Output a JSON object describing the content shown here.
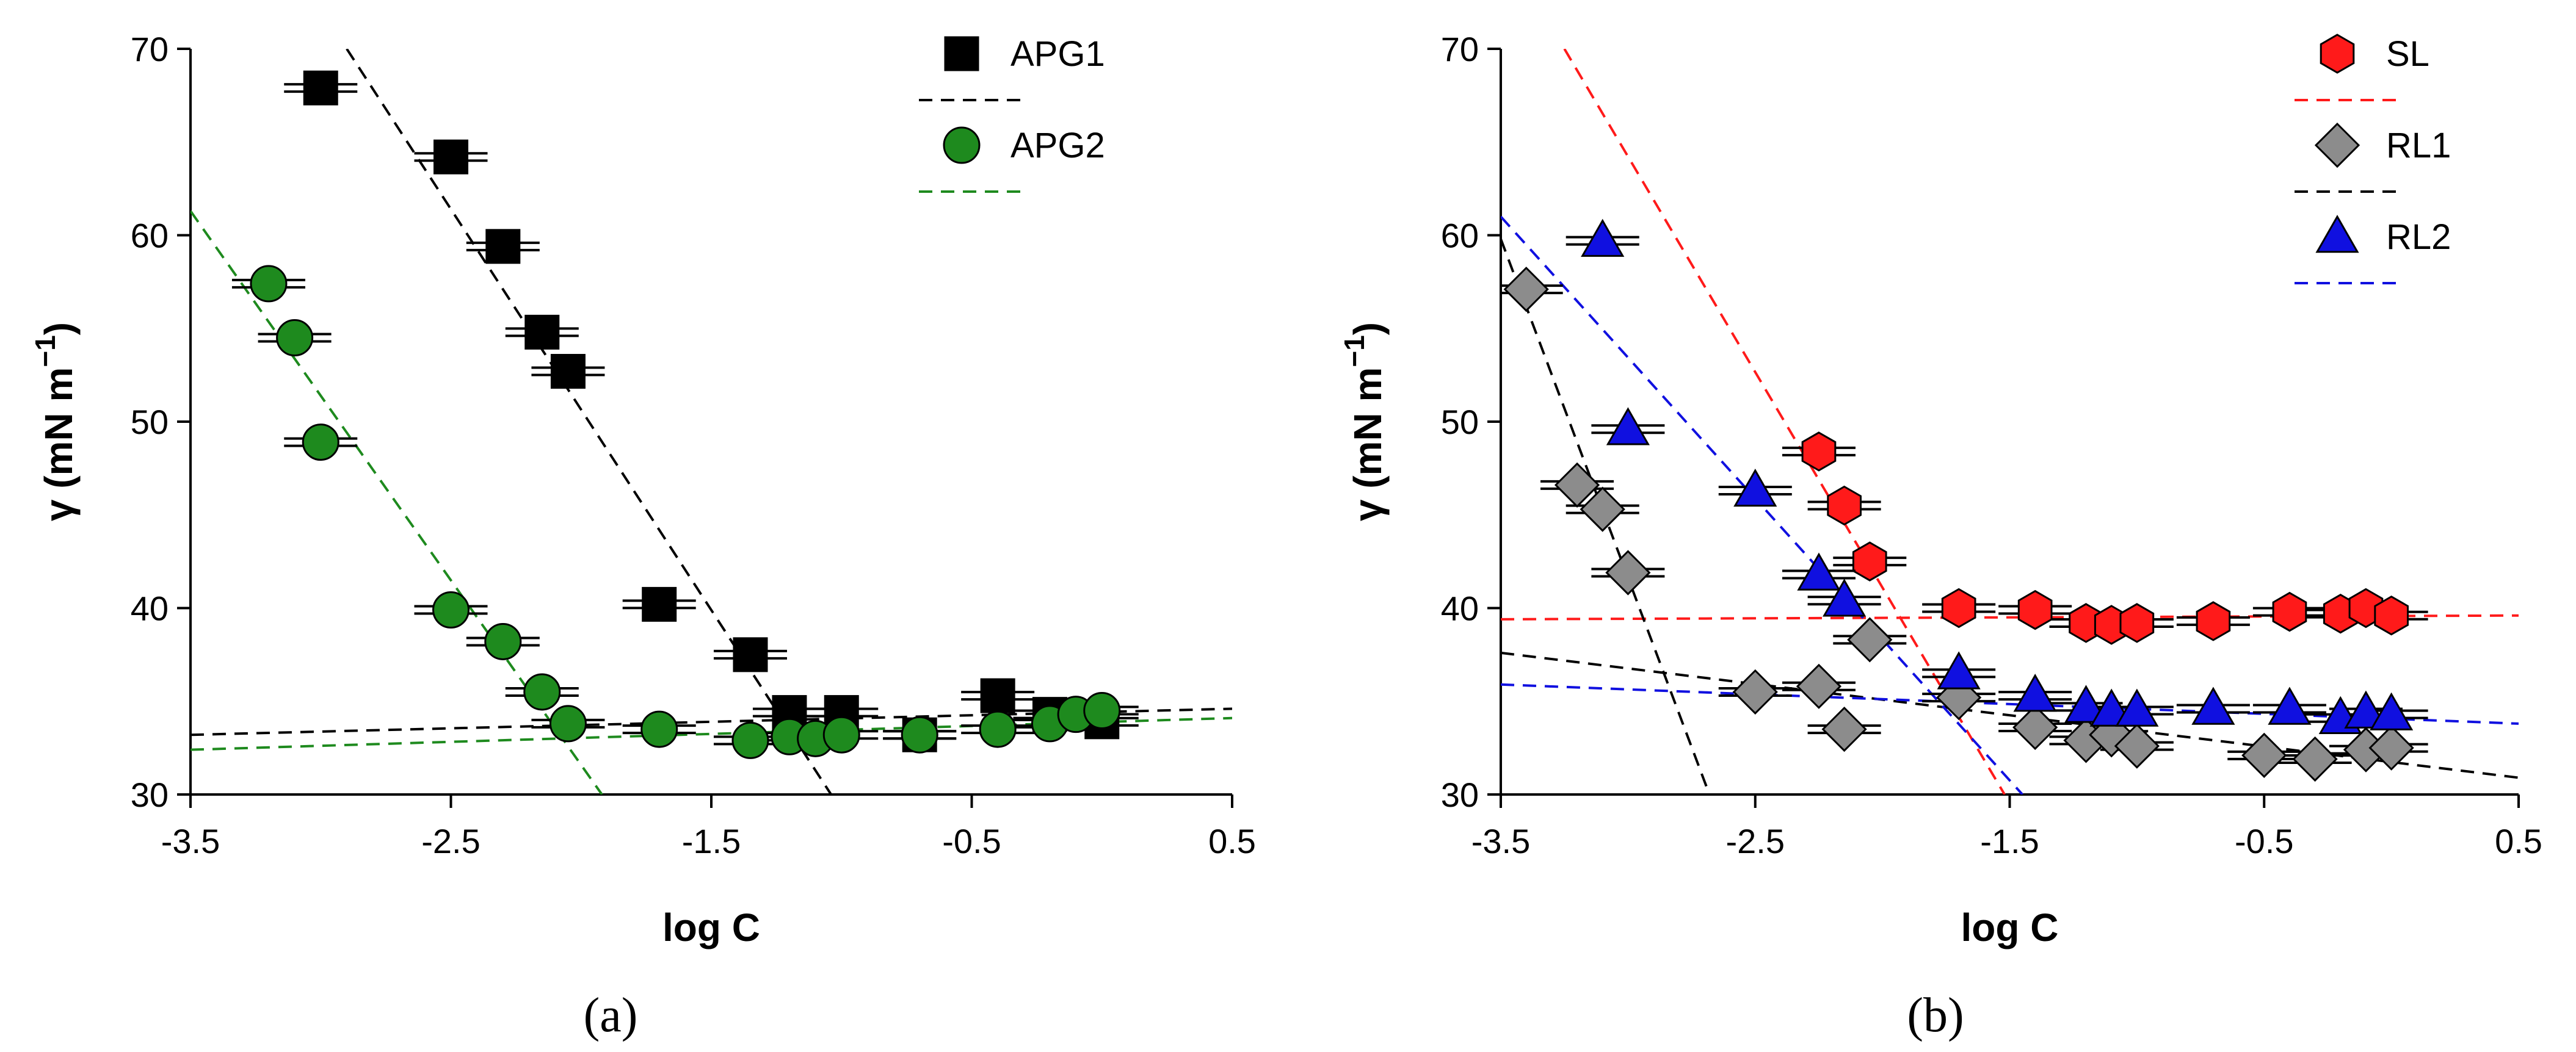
{
  "chart_data": [
    {
      "type": "scatter",
      "panel_label": "(a)",
      "xlabel": "log C",
      "ylabel_prefix": "γ (mN m",
      "ylabel_sup": "−1",
      "ylabel_suffix": ")",
      "xlim": [
        -3.5,
        0.5
      ],
      "ylim": [
        30,
        70
      ],
      "xticks": [
        -3.5,
        -2.5,
        -1.5,
        -0.5,
        0.5
      ],
      "xtick_labels": [
        "-3.5",
        "-2.5",
        "-1.5",
        "-0.5",
        "0.5"
      ],
      "yticks": [
        30,
        40,
        50,
        60,
        70
      ],
      "ytick_labels": [
        "30",
        "40",
        "50",
        "60",
        "70"
      ],
      "legend_position": "top-right",
      "series": [
        {
          "name": "APG1",
          "marker": "square",
          "color": "#000000",
          "line_color": "#000000",
          "points": [
            {
              "x": -3.0,
              "y": 67.9
            },
            {
              "x": -2.5,
              "y": 64.2
            },
            {
              "x": -2.3,
              "y": 59.4
            },
            {
              "x": -2.15,
              "y": 54.8
            },
            {
              "x": -2.05,
              "y": 52.7
            },
            {
              "x": -1.7,
              "y": 40.2
            },
            {
              "x": -1.35,
              "y": 37.5
            },
            {
              "x": -1.2,
              "y": 34.4
            },
            {
              "x": -1.0,
              "y": 34.4
            },
            {
              "x": -0.7,
              "y": 33.2
            },
            {
              "x": -0.4,
              "y": 35.3
            },
            {
              "x": -0.2,
              "y": 34.3
            },
            {
              "x": 0.0,
              "y": 33.9
            }
          ],
          "fit_lines": [
            {
              "x": [
                -2.9,
                -1.04
              ],
              "y": [
                70,
                30
              ]
            },
            {
              "x": [
                -3.5,
                0.5
              ],
              "y": [
                33.2,
                34.6
              ]
            }
          ]
        },
        {
          "name": "APG2",
          "marker": "circle",
          "color": "#1e8a1e",
          "line_color": "#1e8a1e",
          "points": [
            {
              "x": -3.2,
              "y": 57.4
            },
            {
              "x": -3.1,
              "y": 54.5
            },
            {
              "x": -3.0,
              "y": 48.9
            },
            {
              "x": -2.5,
              "y": 39.9
            },
            {
              "x": -2.3,
              "y": 38.2
            },
            {
              "x": -2.15,
              "y": 35.5
            },
            {
              "x": -2.05,
              "y": 33.8
            },
            {
              "x": -1.7,
              "y": 33.5
            },
            {
              "x": -1.35,
              "y": 32.9
            },
            {
              "x": -1.2,
              "y": 33.1
            },
            {
              "x": -1.1,
              "y": 33.0
            },
            {
              "x": -1.0,
              "y": 33.2
            },
            {
              "x": -0.7,
              "y": 33.2
            },
            {
              "x": -0.4,
              "y": 33.5
            },
            {
              "x": -0.2,
              "y": 33.8
            },
            {
              "x": -0.1,
              "y": 34.3
            },
            {
              "x": 0.0,
              "y": 34.5
            }
          ],
          "fit_lines": [
            {
              "x": [
                -3.5,
                -1.92
              ],
              "y": [
                61.3,
                30
              ]
            },
            {
              "x": [
                -3.5,
                0.5
              ],
              "y": [
                32.4,
                34.1
              ]
            }
          ]
        }
      ]
    },
    {
      "type": "scatter",
      "panel_label": "(b)",
      "xlabel": "log C",
      "ylabel_prefix": "γ (mN m",
      "ylabel_sup": "−1",
      "ylabel_suffix": ")",
      "xlim": [
        -3.5,
        0.5
      ],
      "ylim": [
        30,
        70
      ],
      "xticks": [
        -3.5,
        -2.5,
        -1.5,
        -0.5,
        0.5
      ],
      "xtick_labels": [
        "-3.5",
        "-2.5",
        "-1.5",
        "-0.5",
        "0.5"
      ],
      "yticks": [
        30,
        40,
        50,
        60,
        70
      ],
      "ytick_labels": [
        "30",
        "40",
        "50",
        "60",
        "70"
      ],
      "legend_position": "top-right",
      "series": [
        {
          "name": "SL",
          "marker": "hexagon",
          "color": "#ff1a1a",
          "line_color": "#ff1a1a",
          "points": [
            {
              "x": -2.25,
              "y": 48.4
            },
            {
              "x": -2.15,
              "y": 45.5
            },
            {
              "x": -2.05,
              "y": 42.5
            },
            {
              "x": -1.7,
              "y": 40.0
            },
            {
              "x": -1.4,
              "y": 39.9
            },
            {
              "x": -1.2,
              "y": 39.2
            },
            {
              "x": -1.1,
              "y": 39.1
            },
            {
              "x": -1.0,
              "y": 39.2
            },
            {
              "x": -0.7,
              "y": 39.3
            },
            {
              "x": -0.4,
              "y": 39.8
            },
            {
              "x": -0.2,
              "y": 39.7
            },
            {
              "x": -0.1,
              "y": 40.0
            },
            {
              "x": 0.0,
              "y": 39.6
            }
          ],
          "fit_lines": [
            {
              "x": [
                -3.25,
                -1.52
              ],
              "y": [
                70,
                30
              ]
            },
            {
              "x": [
                -3.5,
                0.5
              ],
              "y": [
                39.4,
                39.6
              ]
            }
          ]
        },
        {
          "name": "RL1",
          "marker": "diamond",
          "color": "#8c8c8c",
          "line_color": "#000000",
          "points": [
            {
              "x": -3.4,
              "y": 57.1
            },
            {
              "x": -3.2,
              "y": 46.6
            },
            {
              "x": -3.1,
              "y": 45.3
            },
            {
              "x": -3.0,
              "y": 41.9
            },
            {
              "x": -2.5,
              "y": 35.5
            },
            {
              "x": -2.25,
              "y": 35.8
            },
            {
              "x": -2.15,
              "y": 33.5
            },
            {
              "x": -2.05,
              "y": 38.3
            },
            {
              "x": -1.7,
              "y": 35.2
            },
            {
              "x": -1.4,
              "y": 33.6
            },
            {
              "x": -1.2,
              "y": 32.9
            },
            {
              "x": -1.1,
              "y": 33.2
            },
            {
              "x": -1.0,
              "y": 32.6
            },
            {
              "x": -0.5,
              "y": 32.1
            },
            {
              "x": -0.3,
              "y": 31.9
            },
            {
              "x": -0.1,
              "y": 32.4
            },
            {
              "x": 0.0,
              "y": 32.5
            }
          ],
          "fit_lines": [
            {
              "x": [
                -3.5,
                -2.68
              ],
              "y": [
                59.8,
                30
              ]
            },
            {
              "x": [
                -3.5,
                0.5
              ],
              "y": [
                37.6,
                30.9
              ]
            }
          ]
        },
        {
          "name": "RL2",
          "marker": "triangle",
          "color": "#1010e0",
          "line_color": "#1010e0",
          "points": [
            {
              "x": -3.1,
              "y": 59.7
            },
            {
              "x": -3.0,
              "y": 49.6
            },
            {
              "x": -2.5,
              "y": 46.3
            },
            {
              "x": -2.25,
              "y": 41.8
            },
            {
              "x": -2.15,
              "y": 40.4
            },
            {
              "x": -1.7,
              "y": 36.5
            },
            {
              "x": -1.4,
              "y": 35.3
            },
            {
              "x": -1.2,
              "y": 34.7
            },
            {
              "x": -1.1,
              "y": 34.5
            },
            {
              "x": -1.0,
              "y": 34.5
            },
            {
              "x": -0.7,
              "y": 34.6
            },
            {
              "x": -0.4,
              "y": 34.6
            },
            {
              "x": -0.2,
              "y": 34.1
            },
            {
              "x": -0.1,
              "y": 34.4
            },
            {
              "x": 0.0,
              "y": 34.3
            }
          ],
          "fit_lines": [
            {
              "x": [
                -3.5,
                -1.45
              ],
              "y": [
                61.0,
                30
              ]
            },
            {
              "x": [
                -3.5,
                0.5
              ],
              "y": [
                35.9,
                33.8
              ]
            }
          ]
        }
      ]
    }
  ]
}
